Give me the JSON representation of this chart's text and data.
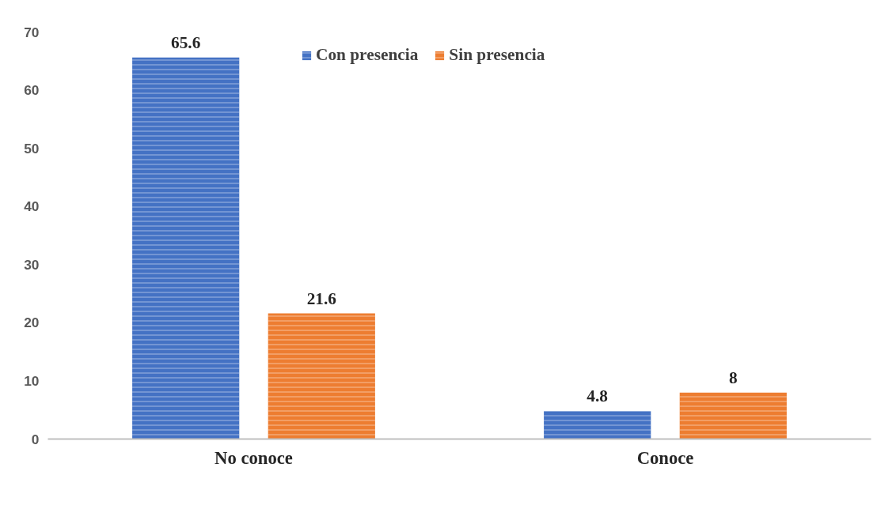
{
  "chart_data": {
    "type": "bar",
    "categories": [
      "No conoce",
      "Conoce"
    ],
    "series": [
      {
        "name": "Con presencia",
        "color": "#4472c4",
        "values": [
          65.6,
          4.8
        ]
      },
      {
        "name": "Sin presencia",
        "color": "#ed7d31",
        "values": [
          21.6,
          8
        ]
      }
    ],
    "ylim": [
      0,
      70
    ],
    "yticks": [
      0,
      10,
      20,
      30,
      40,
      50,
      60,
      70
    ],
    "grid": false,
    "legend": "top",
    "data_labels": true
  }
}
